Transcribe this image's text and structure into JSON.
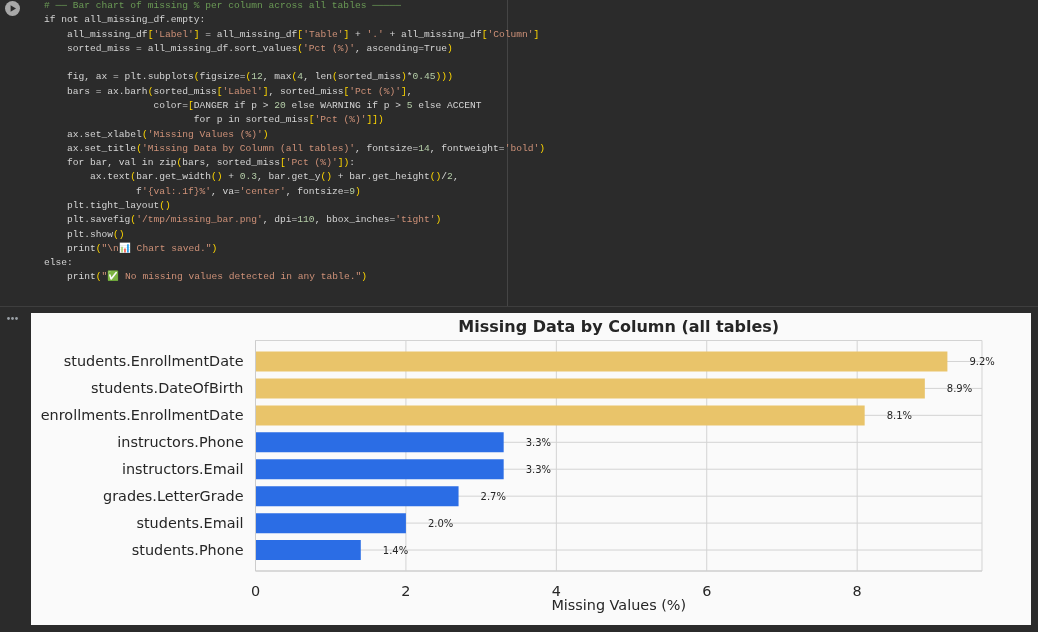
{
  "chart_data": [
    {
      "type": "other",
      "annotations": [
        "# ── Bar chart of missing % per column across all tables ─────\nif not all_missing_df.empty:\n    all_missing_df['Label'] = all_missing_df['Table'] + '.' + all_missing_df['Column']\n    sorted_miss = all_missing_df.sort_values('Pct (%)', ascending=True)\n\n    fig, ax = plt.subplots(figsize=(12, max(4, len(sorted_miss)*0.45)))\n    bars = ax.barh(sorted_miss['Label'], sorted_miss['Pct (%)'],\n                   color=[DANGER if p > 20 else WARNING if p > 5 else ACCENT\n                          for p in sorted_miss['Pct (%)']])\n    ax.set_xlabel('Missing Values (%)')\n    ax.set_title('Missing Data by Column (all tables)', fontsize=14, fontweight='bold')\n    for bar, val in zip(bars, sorted_miss['Pct (%)']):\n        ax.text(bar.get_width() + 0.3, bar.get_y() + bar.get_height()/2,\n                f'{val:.1f}%', va='center', fontsize=9)\n    plt.tight_layout()\n    plt.savefig('/tmp/missing_bar.png', dpi=110, bbox_inches='tight')\n    plt.show()\n    print(\"\\n📊 Chart saved.\")\nelse:\n    print(\"✅ No missing values detected in any table.\")"
      ]
    },
    {
      "type": "bar",
      "orientation": "horizontal",
      "title": "Missing Data by Column (all tables)",
      "xlabel": "Missing Values (%)",
      "categories": [
        "students.EnrollmentDate",
        "students.DateOfBirth",
        "enrollments.EnrollmentDate",
        "instructors.Phone",
        "instructors.Email",
        "grades.LetterGrade",
        "students.Email",
        "students.Phone"
      ],
      "values": [
        9.2,
        8.9,
        8.1,
        3.3,
        3.3,
        2.7,
        2.0,
        1.4
      ],
      "colors": [
        "#e9c46a",
        "#e9c46a",
        "#e9c46a",
        "#2b6de5",
        "#2b6de5",
        "#2b6de5",
        "#2b6de5",
        "#2b6de5"
      ],
      "value_labels": [
        "9.2%",
        "8.9%",
        "8.1%",
        "3.3%",
        "3.3%",
        "2.7%",
        "2.0%",
        "1.4%"
      ],
      "xlim": [
        0,
        9.66
      ],
      "xticks": [
        0,
        2,
        4,
        6,
        8
      ],
      "grid": true
    }
  ]
}
